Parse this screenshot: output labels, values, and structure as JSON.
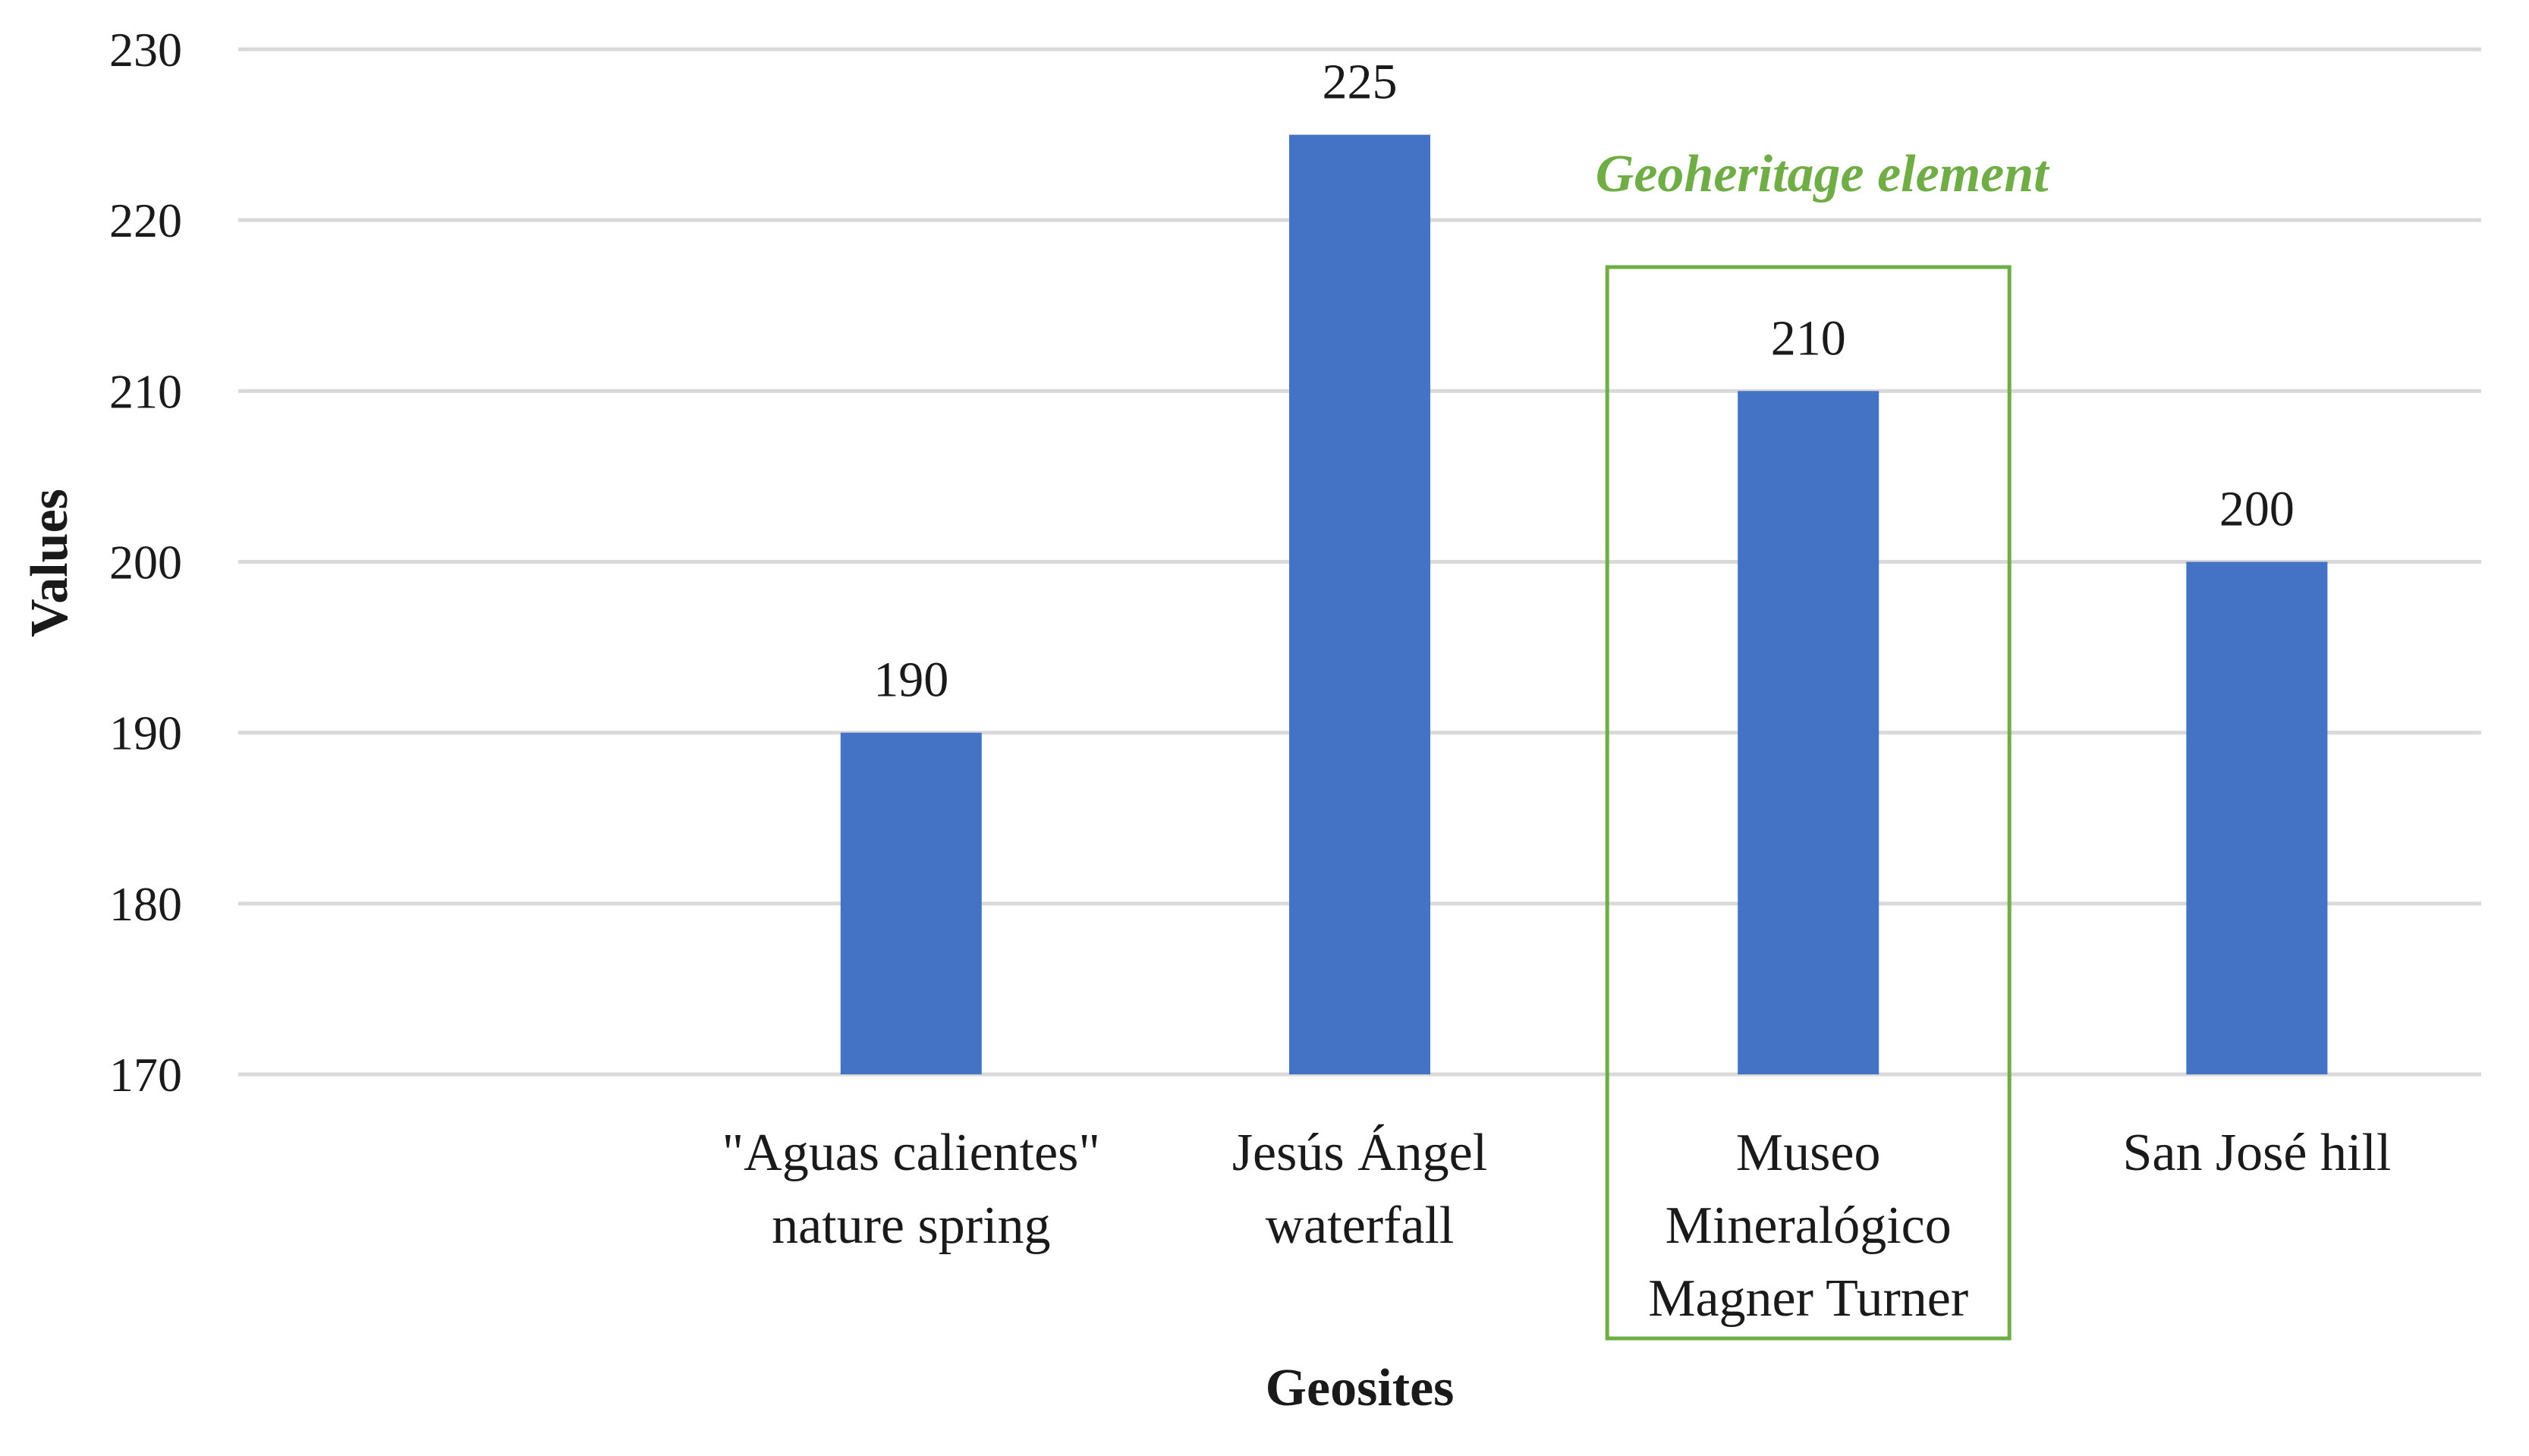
{
  "chart_data": {
    "type": "bar",
    "categories": [
      "",
      "\"Aguas calientes\" nature spring",
      "Jesús Ángel waterfall",
      "Museo Mineralógico Magner Turner",
      "San José hill"
    ],
    "category_label_lines": [
      [],
      [
        "\"Aguas calientes\"",
        "nature spring"
      ],
      [
        "Jesús Ángel",
        "waterfall"
      ],
      [
        "Museo",
        "Mineralógico",
        "Magner Turner"
      ],
      [
        "San José hill"
      ]
    ],
    "values": [
      null,
      190,
      225,
      210,
      200
    ],
    "data_labels": [
      "",
      "190",
      "225",
      "210",
      "200"
    ],
    "xlabel": "Geosites",
    "ylabel": "Values",
    "ylim": [
      170,
      230
    ],
    "yticks": [
      "170",
      "180",
      "190",
      "200",
      "210",
      "220",
      "230"
    ],
    "grid": true,
    "legend": "none",
    "colors": {
      "bar": "#4472c4",
      "annotation": "#70ad47",
      "grid": "#d9d9d9"
    },
    "annotation": {
      "text": "Geoheritage element",
      "highlighted_category": "Museo Mineralógico Magner Turner"
    }
  }
}
